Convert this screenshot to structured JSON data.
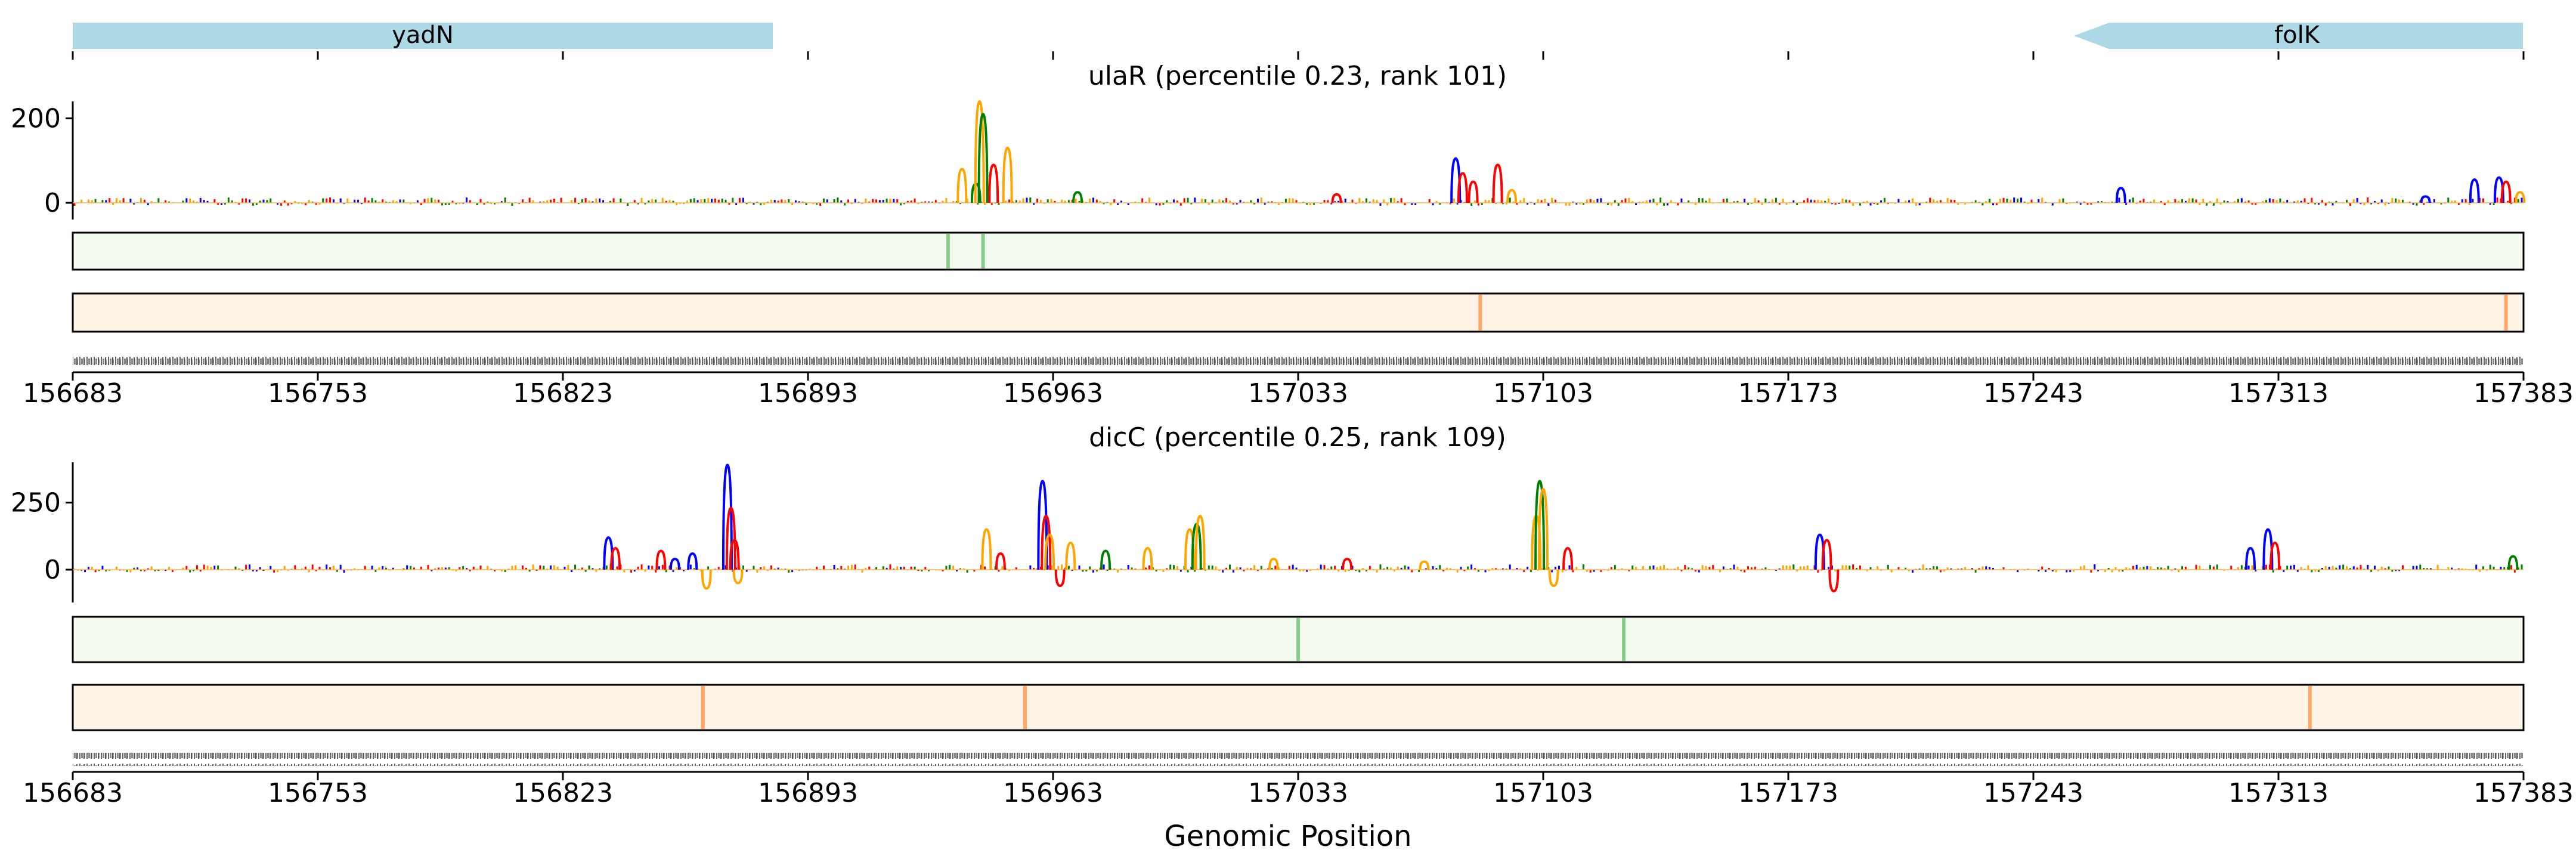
{
  "genes": [
    {
      "name": "yadN",
      "start": 156683,
      "end": 156888,
      "strand": "-"
    },
    {
      "name": "folK",
      "start": 157250,
      "end": 157383,
      "strand": "-"
    }
  ],
  "xlabel": "Genomic Position",
  "xticks": [
    156683,
    156753,
    156823,
    156893,
    156963,
    157033,
    157103,
    157173,
    157243,
    157313,
    157383
  ],
  "colors": {
    "A": "#008000",
    "C": "#0000ff",
    "G": "#ffa500",
    "T": "#ff0000",
    "gene": "#add8e6",
    "track1": "#74c476",
    "track2": "#fd8d3c",
    "track1_bg": "#f3faf0",
    "track2_bg": "#fff3e6"
  },
  "chart_data": [
    {
      "type": "area",
      "title": "ulaR (percentile 0.23, rank 101)",
      "xlim": [
        156683,
        157383
      ],
      "ylim": [
        -20,
        240
      ],
      "yticks": [
        0,
        200
      ],
      "peaks": [
        {
          "x": 156937,
          "y": 80,
          "base": "G"
        },
        {
          "x": 156941,
          "y": 45,
          "base": "A"
        },
        {
          "x": 156942,
          "y": 240,
          "base": "G"
        },
        {
          "x": 156943,
          "y": 210,
          "base": "A"
        },
        {
          "x": 156946,
          "y": 90,
          "base": "T"
        },
        {
          "x": 156950,
          "y": 130,
          "base": "G"
        },
        {
          "x": 156970,
          "y": 25,
          "base": "A"
        },
        {
          "x": 157044,
          "y": 20,
          "base": "T"
        },
        {
          "x": 157078,
          "y": 105,
          "base": "C"
        },
        {
          "x": 157080,
          "y": 70,
          "base": "T"
        },
        {
          "x": 157083,
          "y": 50,
          "base": "T"
        },
        {
          "x": 157090,
          "y": 90,
          "base": "T"
        },
        {
          "x": 157094,
          "y": 30,
          "base": "G"
        },
        {
          "x": 157268,
          "y": 35,
          "base": "C"
        },
        {
          "x": 157355,
          "y": 15,
          "base": "C"
        },
        {
          "x": 157369,
          "y": 55,
          "base": "C"
        },
        {
          "x": 157376,
          "y": 60,
          "base": "C"
        },
        {
          "x": 157378,
          "y": 50,
          "base": "T"
        },
        {
          "x": 157382,
          "y": 25,
          "base": "G"
        }
      ],
      "track1_hot": [
        156933,
        156943
      ],
      "track2_hot": [
        157085,
        157378
      ]
    },
    {
      "type": "area",
      "title": "dicC (percentile 0.25, rank 109)",
      "xlim": [
        156683,
        157383
      ],
      "ylim": [
        -80,
        400
      ],
      "yticks": [
        0,
        250
      ],
      "peaks": [
        {
          "x": 156836,
          "y": 120,
          "base": "C"
        },
        {
          "x": 156838,
          "y": 80,
          "base": "T"
        },
        {
          "x": 156851,
          "y": 70,
          "base": "T"
        },
        {
          "x": 156855,
          "y": 40,
          "base": "C"
        },
        {
          "x": 156860,
          "y": 60,
          "base": "C"
        },
        {
          "x": 156864,
          "y": -70,
          "base": "G"
        },
        {
          "x": 156870,
          "y": 390,
          "base": "C"
        },
        {
          "x": 156871,
          "y": 230,
          "base": "T"
        },
        {
          "x": 156872,
          "y": 110,
          "base": "T"
        },
        {
          "x": 156873,
          "y": -50,
          "base": "G"
        },
        {
          "x": 156944,
          "y": 150,
          "base": "G"
        },
        {
          "x": 156948,
          "y": 60,
          "base": "T"
        },
        {
          "x": 156960,
          "y": 330,
          "base": "C"
        },
        {
          "x": 156961,
          "y": 200,
          "base": "T"
        },
        {
          "x": 156962,
          "y": 130,
          "base": "G"
        },
        {
          "x": 156965,
          "y": -60,
          "base": "T"
        },
        {
          "x": 156968,
          "y": 100,
          "base": "G"
        },
        {
          "x": 156978,
          "y": 70,
          "base": "A"
        },
        {
          "x": 156990,
          "y": 80,
          "base": "G"
        },
        {
          "x": 157002,
          "y": 150,
          "base": "G"
        },
        {
          "x": 157004,
          "y": 170,
          "base": "A"
        },
        {
          "x": 157005,
          "y": 200,
          "base": "G"
        },
        {
          "x": 157026,
          "y": 40,
          "base": "G"
        },
        {
          "x": 157047,
          "y": 40,
          "base": "T"
        },
        {
          "x": 157069,
          "y": 30,
          "base": "G"
        },
        {
          "x": 157101,
          "y": 200,
          "base": "G"
        },
        {
          "x": 157102,
          "y": 330,
          "base": "A"
        },
        {
          "x": 157103,
          "y": 300,
          "base": "G"
        },
        {
          "x": 157106,
          "y": -60,
          "base": "G"
        },
        {
          "x": 157110,
          "y": 80,
          "base": "T"
        },
        {
          "x": 157182,
          "y": 130,
          "base": "C"
        },
        {
          "x": 157184,
          "y": 110,
          "base": "T"
        },
        {
          "x": 157186,
          "y": -80,
          "base": "T"
        },
        {
          "x": 157305,
          "y": 80,
          "base": "C"
        },
        {
          "x": 157310,
          "y": 150,
          "base": "C"
        },
        {
          "x": 157312,
          "y": 100,
          "base": "T"
        },
        {
          "x": 157380,
          "y": 50,
          "base": "A"
        }
      ],
      "track1_hot": [
        157033,
        157126
      ],
      "track2_hot": [
        156863,
        156955,
        157322
      ]
    }
  ]
}
